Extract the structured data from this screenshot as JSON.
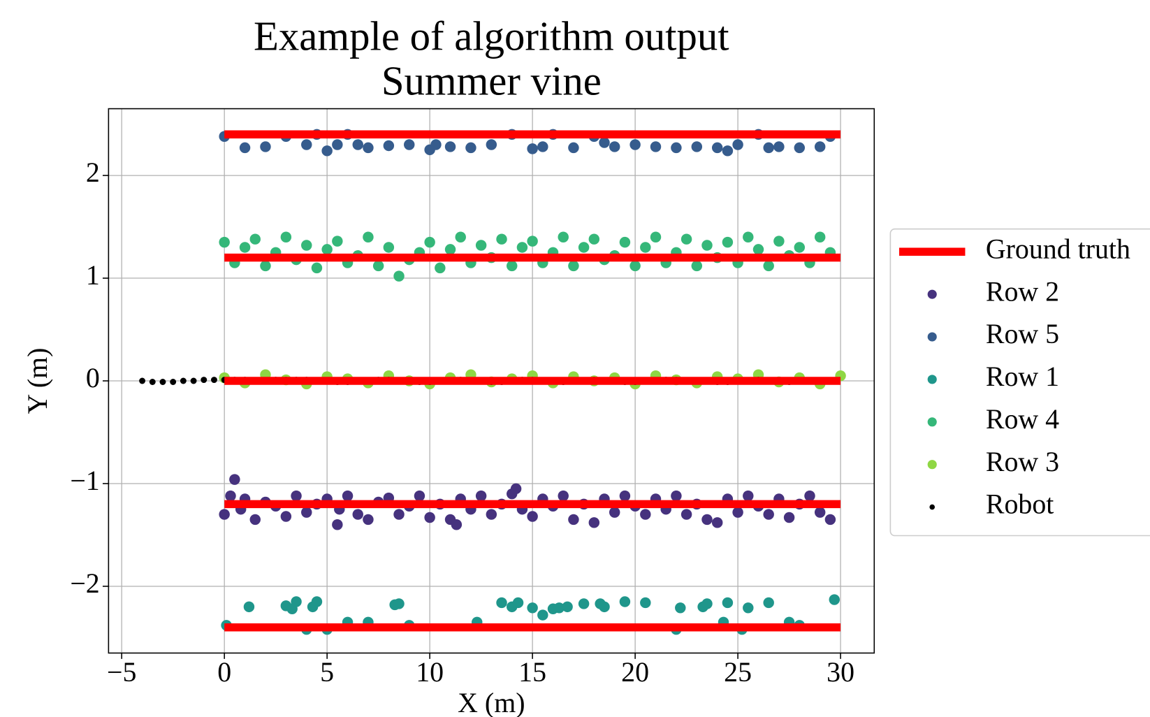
{
  "chart_data": {
    "type": "scatter",
    "title": "Example of algorithm output",
    "subtitle": "Summer vine",
    "x_label": "X (m)",
    "y_label": "Y (m)",
    "xlim": [
      -5.64,
      31.64
    ],
    "ylim": [
      -2.65,
      2.65
    ],
    "xticks": [
      {
        "value": -5,
        "label": "−5"
      },
      0,
      5,
      10,
      15,
      20,
      25,
      30
    ],
    "yticks": [
      {
        "value": -2,
        "label": "−2"
      },
      {
        "value": -1,
        "label": "−1"
      },
      0,
      1,
      2
    ],
    "grid": true,
    "legend": "outside right",
    "series": [
      {
        "name": "Ground truth",
        "type": "line",
        "color": "#ff0000",
        "x": [
          0,
          30,
          null,
          0,
          30,
          null,
          0,
          30,
          null,
          0,
          30,
          null,
          0,
          30
        ],
        "values": [
          2.4,
          2.4,
          null,
          1.2,
          1.2,
          null,
          0,
          0,
          null,
          -1.2,
          -1.2,
          null,
          -2.4,
          -2.4
        ]
      },
      {
        "name": "Row 2",
        "type": "scatter",
        "color": "#46327e",
        "marker_size": 60,
        "x": [
          0,
          0.3,
          0.5,
          0.8,
          1,
          1.5,
          2,
          2.5,
          3,
          3.5,
          4,
          4.5,
          5,
          5.5,
          5.6,
          6,
          6.5,
          7,
          7.5,
          8,
          8.5,
          9,
          9.5,
          10,
          10.5,
          11,
          11.3,
          11.5,
          12,
          12.5,
          13,
          13.5,
          14,
          14.2,
          14.5,
          15,
          15.5,
          16,
          16.5,
          17,
          17.5,
          18,
          18.5,
          19,
          19.5,
          20,
          20.5,
          21,
          21.5,
          22,
          22.5,
          23,
          23.5,
          24,
          24.5,
          25,
          25.5,
          26,
          26.5,
          27,
          27.5,
          28,
          28.5,
          29,
          29.5
        ],
        "values": [
          -1.3,
          -1.12,
          -0.96,
          -1.25,
          -1.15,
          -1.35,
          -1.18,
          -1.22,
          -1.32,
          -1.12,
          -1.28,
          -1.2,
          -1.15,
          -1.4,
          -1.25,
          -1.12,
          -1.3,
          -1.35,
          -1.18,
          -1.14,
          -1.3,
          -1.22,
          -1.12,
          -1.33,
          -1.2,
          -1.35,
          -1.4,
          -1.15,
          -1.25,
          -1.12,
          -1.3,
          -1.2,
          -1.1,
          -1.05,
          -1.25,
          -1.32,
          -1.15,
          -1.22,
          -1.12,
          -1.35,
          -1.2,
          -1.38,
          -1.15,
          -1.28,
          -1.12,
          -1.22,
          -1.3,
          -1.15,
          -1.25,
          -1.12,
          -1.3,
          -1.2,
          -1.35,
          -1.38,
          -1.15,
          -1.28,
          -1.12,
          -1.22,
          -1.3,
          -1.15,
          -1.33,
          -1.2,
          -1.12,
          -1.28,
          -1.35
        ]
      },
      {
        "name": "Row 5",
        "type": "scatter",
        "color": "#365c8d",
        "marker_size": 60,
        "x": [
          0,
          1,
          2,
          3,
          4,
          4.5,
          5,
          5.5,
          6,
          6.5,
          7,
          8,
          9,
          10,
          10.3,
          11,
          12,
          13,
          14,
          15,
          15.5,
          16,
          17,
          18,
          18.5,
          19,
          20,
          21,
          22,
          23,
          24,
          24.5,
          25,
          26,
          26.5,
          27,
          28,
          29,
          29.5
        ],
        "values": [
          2.38,
          2.27,
          2.28,
          2.38,
          2.3,
          2.4,
          2.24,
          2.3,
          2.4,
          2.3,
          2.27,
          2.29,
          2.3,
          2.25,
          2.3,
          2.28,
          2.27,
          2.3,
          2.4,
          2.26,
          2.28,
          2.4,
          2.27,
          2.38,
          2.32,
          2.28,
          2.3,
          2.28,
          2.27,
          2.28,
          2.27,
          2.24,
          2.3,
          2.4,
          2.27,
          2.28,
          2.27,
          2.28,
          2.38
        ]
      },
      {
        "name": "Row 1",
        "type": "scatter",
        "color": "#1f968b",
        "marker_size": 60,
        "x": [
          0.1,
          1.2,
          3,
          3.3,
          3.5,
          4,
          4.3,
          4.5,
          5,
          6,
          7,
          8.3,
          8.5,
          9,
          12.3,
          13.5,
          14,
          14.3,
          15,
          15.5,
          16,
          16.3,
          16.7,
          17.5,
          18.5,
          18.3,
          19.5,
          20.5,
          22,
          22.2,
          23.3,
          23.5,
          24.5,
          24.3,
          25.2,
          25.5,
          26.5,
          27.5,
          28,
          29.7
        ],
        "values": [
          -2.38,
          -2.2,
          -2.19,
          -2.22,
          -2.15,
          -2.42,
          -2.2,
          -2.15,
          -2.42,
          -2.35,
          -2.35,
          -2.18,
          -2.17,
          -2.38,
          -2.35,
          -2.16,
          -2.2,
          -2.16,
          -2.21,
          -2.28,
          -2.22,
          -2.21,
          -2.2,
          -2.17,
          -2.2,
          -2.17,
          -2.15,
          -2.16,
          -2.42,
          -2.21,
          -2.2,
          -2.17,
          -2.16,
          -2.35,
          -2.42,
          -2.21,
          -2.16,
          -2.35,
          -2.38,
          -2.13
        ]
      },
      {
        "name": "Row 4",
        "type": "scatter",
        "color": "#35b779",
        "marker_size": 60,
        "x": [
          0,
          0.5,
          1,
          1.5,
          2,
          2.5,
          3,
          3.5,
          4,
          4.5,
          5,
          5.5,
          6,
          6.5,
          7,
          7.5,
          8,
          8.5,
          9,
          9.5,
          10,
          10.5,
          11,
          11.5,
          12,
          12.5,
          13,
          13.5,
          14,
          14.5,
          15,
          15.5,
          16,
          16.5,
          17,
          17.5,
          18,
          18.5,
          19,
          19.5,
          20,
          20.5,
          21,
          21.5,
          22,
          22.5,
          23,
          23.5,
          24,
          24.5,
          25,
          25.5,
          26,
          26.5,
          27,
          27.5,
          28,
          28.5,
          29,
          29.5
        ],
        "values": [
          1.35,
          1.15,
          1.3,
          1.38,
          1.12,
          1.25,
          1.4,
          1.18,
          1.32,
          1.1,
          1.28,
          1.36,
          1.15,
          1.22,
          1.4,
          1.12,
          1.3,
          1.02,
          1.18,
          1.25,
          1.35,
          1.1,
          1.28,
          1.4,
          1.15,
          1.32,
          1.2,
          1.38,
          1.12,
          1.3,
          1.36,
          1.15,
          1.25,
          1.4,
          1.12,
          1.3,
          1.38,
          1.18,
          1.22,
          1.35,
          1.12,
          1.3,
          1.4,
          1.15,
          1.25,
          1.38,
          1.12,
          1.32,
          1.2,
          1.35,
          1.15,
          1.4,
          1.28,
          1.12,
          1.36,
          1.22,
          1.3,
          1.15,
          1.4,
          1.25
        ]
      },
      {
        "name": "Row 3",
        "type": "scatter",
        "color": "#8fd744",
        "marker_size": 60,
        "x": [
          0,
          1,
          2,
          3,
          4,
          5,
          6,
          7,
          8,
          9,
          10,
          11,
          12,
          13,
          14,
          15,
          16,
          17,
          18,
          19,
          20,
          21,
          22,
          23,
          24,
          25,
          26,
          27,
          28,
          29,
          30
        ],
        "values": [
          0.03,
          -0.02,
          0.06,
          0.01,
          -0.03,
          0.04,
          0.02,
          -0.02,
          0.05,
          0,
          -0.03,
          0.03,
          0.06,
          -0.01,
          0.02,
          0.05,
          -0.02,
          0.04,
          0,
          0.03,
          -0.03,
          0.05,
          0.01,
          -0.02,
          0.04,
          0.02,
          0.06,
          -0.01,
          0.03,
          -0.03,
          0.05
        ]
      },
      {
        "name": "Robot",
        "type": "scatter",
        "color": "#000000",
        "marker_size": 20,
        "x": [
          -4,
          -3.5,
          -3,
          -2.5,
          -2,
          -1.5,
          -1,
          -0.5,
          0,
          0.5,
          1,
          1.5,
          2,
          2.5,
          3,
          3.5,
          4,
          4.5,
          5,
          5.5,
          6,
          6.5,
          7,
          7.5,
          8,
          8.5,
          9,
          9.5,
          10,
          10.5,
          11,
          11.5,
          12,
          12.5,
          13,
          13.5,
          14,
          14.5,
          15,
          15.5,
          16,
          16.5,
          17,
          17.5,
          18,
          18.5,
          19,
          19.5,
          20,
          20.5,
          21,
          21.5,
          22,
          22.5,
          23,
          23.5,
          24,
          24.5,
          25,
          25.5,
          26,
          26.5,
          27,
          27.5,
          28
        ],
        "values": [
          0,
          -0.01,
          -0.01,
          -0.01,
          0,
          0,
          0.01,
          0.01,
          0.01,
          0.01,
          0.01,
          0,
          0,
          0.01,
          0.01,
          0.01,
          0.01,
          0,
          0,
          -0.01,
          -0.01,
          0,
          0,
          0.01,
          0.01,
          0,
          0,
          -0.01,
          -0.01,
          0,
          0,
          0.01,
          0,
          0,
          -0.01,
          -0.01,
          0,
          0.01,
          0.01,
          0,
          0,
          -0.01,
          0,
          0,
          0.01,
          0,
          0,
          -0.01,
          -0.01,
          0,
          0,
          0.01,
          0.01,
          0,
          0,
          0,
          -0.01,
          -0.01,
          0,
          0,
          0.01,
          0,
          0,
          -0.01,
          0
        ]
      }
    ]
  }
}
